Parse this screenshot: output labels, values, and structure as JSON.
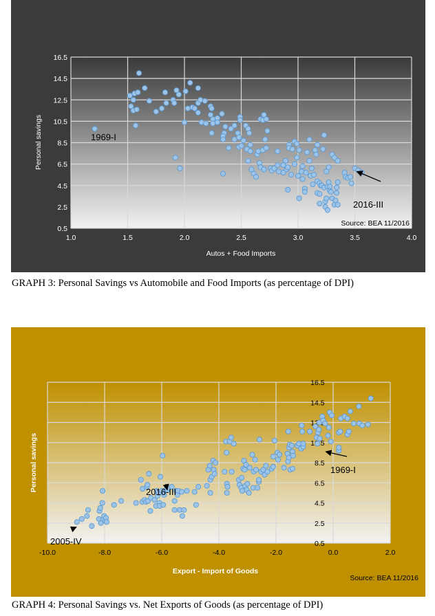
{
  "chart_data": [
    {
      "type": "scatter",
      "title": "",
      "xlabel": "Autos + Food Imports",
      "ylabel": "Personal savings",
      "xlim": [
        1.0,
        4.0
      ],
      "ylim": [
        0.5,
        16.5
      ],
      "xticks": [
        "1.0",
        "1.5",
        "2.0",
        "2.5",
        "3.0",
        "3.5",
        "4.0"
      ],
      "yticks": [
        "0.5",
        "2.5",
        "4.5",
        "6.5",
        "8.5",
        "10.5",
        "12.5",
        "14.5",
        "16.5"
      ],
      "grid": true,
      "source_note": "Source: BEA 11/2016",
      "colors": {
        "background": "#3b3b3b",
        "plot_top": "#3a3a3a",
        "plot_bottom": "#f2f2f2",
        "marker_fill": "#9dc3e6",
        "marker_stroke": "#5b9bd5",
        "text": "#ffffff"
      },
      "annotations": [
        {
          "text": "1969-I",
          "x": 1.21,
          "y": 9.8,
          "arrow": false
        },
        {
          "text": "2016-III",
          "x": 3.5,
          "y": 6.0,
          "arrow": true
        }
      ],
      "points": [
        [
          1.21,
          9.8
        ],
        [
          1.52,
          12.9
        ],
        [
          1.53,
          11.9
        ],
        [
          1.55,
          12.5
        ],
        [
          1.55,
          11.5
        ],
        [
          1.56,
          13.1
        ],
        [
          1.57,
          10.1
        ],
        [
          1.58,
          11.6
        ],
        [
          1.59,
          13.2
        ],
        [
          1.6,
          15.0
        ],
        [
          1.65,
          13.6
        ],
        [
          1.69,
          12.4
        ],
        [
          1.75,
          11.4
        ],
        [
          1.8,
          11.7
        ],
        [
          1.83,
          13.2
        ],
        [
          1.84,
          12.2
        ],
        [
          1.9,
          12.5
        ],
        [
          1.91,
          12.2
        ],
        [
          1.92,
          7.1
        ],
        [
          1.93,
          13.4
        ],
        [
          1.95,
          13.0
        ],
        [
          1.96,
          6.1
        ],
        [
          2.0,
          10.4
        ],
        [
          2.01,
          13.3
        ],
        [
          2.03,
          11.7
        ],
        [
          2.05,
          14.1
        ],
        [
          2.07,
          11.8
        ],
        [
          2.09,
          11.7
        ],
        [
          2.12,
          13.6
        ],
        [
          2.12,
          12.2
        ],
        [
          2.12,
          11.3
        ],
        [
          2.14,
          12.5
        ],
        [
          2.15,
          10.4
        ],
        [
          2.18,
          12.4
        ],
        [
          2.19,
          10.3
        ],
        [
          2.23,
          11.9
        ],
        [
          2.23,
          11.1
        ],
        [
          2.24,
          11.7
        ],
        [
          2.25,
          10.7
        ],
        [
          2.25,
          10.3
        ],
        [
          2.24,
          9.4
        ],
        [
          2.29,
          10.8
        ],
        [
          2.29,
          10.4
        ],
        [
          2.33,
          11.2
        ],
        [
          2.34,
          5.6
        ],
        [
          2.35,
          9.4
        ],
        [
          2.34,
          9.1
        ],
        [
          2.34,
          8.8
        ],
        [
          2.36,
          10.0
        ],
        [
          2.39,
          8.0
        ],
        [
          2.41,
          9.8
        ],
        [
          2.44,
          10.1
        ],
        [
          2.44,
          8.8
        ],
        [
          2.47,
          9.4
        ],
        [
          2.48,
          9.0
        ],
        [
          2.48,
          8.1
        ],
        [
          2.49,
          10.9
        ],
        [
          2.49,
          10.6
        ],
        [
          2.5,
          8.2
        ],
        [
          2.52,
          8.7
        ],
        [
          2.54,
          10.1
        ],
        [
          2.55,
          7.9
        ],
        [
          2.56,
          9.8
        ],
        [
          2.57,
          9.4
        ],
        [
          2.56,
          6.8
        ],
        [
          2.58,
          8.3
        ],
        [
          2.58,
          7.7
        ],
        [
          2.59,
          6.0
        ],
        [
          2.61,
          5.6
        ],
        [
          2.63,
          5.3
        ],
        [
          2.64,
          7.4
        ],
        [
          2.65,
          7.7
        ],
        [
          2.66,
          6.6
        ],
        [
          2.67,
          6.2
        ],
        [
          2.67,
          10.7
        ],
        [
          2.69,
          10.6
        ],
        [
          2.69,
          7.8
        ],
        [
          2.7,
          6.0
        ],
        [
          2.7,
          11.1
        ],
        [
          2.71,
          8.8
        ],
        [
          2.72,
          10.7
        ],
        [
          2.72,
          8.0
        ],
        [
          2.73,
          9.6
        ],
        [
          2.76,
          6.1
        ],
        [
          2.77,
          5.9
        ],
        [
          2.79,
          6.1
        ],
        [
          2.82,
          6.4
        ],
        [
          2.82,
          7.7
        ],
        [
          2.83,
          5.8
        ],
        [
          2.87,
          5.7
        ],
        [
          2.87,
          6.4
        ],
        [
          2.89,
          6.8
        ],
        [
          2.9,
          6.0
        ],
        [
          2.91,
          6.2
        ],
        [
          2.91,
          4.1
        ],
        [
          2.92,
          8.3
        ],
        [
          2.92,
          8.0
        ],
        [
          2.94,
          5.5
        ],
        [
          2.95,
          7.9
        ],
        [
          2.97,
          8.6
        ],
        [
          2.97,
          6.5
        ],
        [
          2.99,
          8.4
        ],
        [
          2.99,
          7.1
        ],
        [
          3.0,
          5.4
        ],
        [
          3.01,
          7.8
        ],
        [
          3.01,
          3.3
        ],
        [
          3.03,
          5.8
        ],
        [
          3.04,
          6.3
        ],
        [
          3.04,
          5.1
        ],
        [
          3.06,
          4.2
        ],
        [
          3.06,
          3.9
        ],
        [
          3.07,
          5.7
        ],
        [
          3.08,
          7.6
        ],
        [
          3.1,
          6.8
        ],
        [
          3.1,
          8.8
        ],
        [
          3.11,
          5.4
        ],
        [
          3.12,
          6.1
        ],
        [
          3.13,
          4.6
        ],
        [
          3.14,
          5.5
        ],
        [
          3.15,
          7.8
        ],
        [
          3.16,
          7.4
        ],
        [
          3.17,
          8.3
        ],
        [
          3.17,
          4.9
        ],
        [
          3.17,
          3.8
        ],
        [
          3.19,
          4.7
        ],
        [
          3.19,
          3.7
        ],
        [
          3.19,
          2.8
        ],
        [
          3.2,
          4.5
        ],
        [
          3.21,
          4.5
        ],
        [
          3.22,
          7.9
        ],
        [
          3.23,
          9.2
        ],
        [
          3.23,
          4.3
        ],
        [
          3.24,
          3.0
        ],
        [
          3.24,
          2.5
        ],
        [
          3.25,
          5.8
        ],
        [
          3.25,
          3.3
        ],
        [
          3.26,
          2.2
        ],
        [
          3.26,
          4.4
        ],
        [
          3.27,
          6.2
        ],
        [
          3.27,
          4.8
        ],
        [
          3.28,
          4.4
        ],
        [
          3.28,
          4.0
        ],
        [
          3.29,
          3.9
        ],
        [
          3.3,
          7.4
        ],
        [
          3.3,
          3.3
        ],
        [
          3.32,
          7.1
        ],
        [
          3.32,
          2.7
        ],
        [
          3.33,
          3.1
        ],
        [
          3.34,
          4.3
        ],
        [
          3.34,
          3.8
        ],
        [
          3.35,
          6.8
        ],
        [
          3.35,
          4.8
        ],
        [
          3.35,
          2.7
        ],
        [
          3.41,
          5.7
        ],
        [
          3.42,
          5.3
        ],
        [
          3.44,
          5.2
        ],
        [
          3.46,
          5.3
        ],
        [
          3.47,
          4.7
        ],
        [
          3.5,
          6.1
        ],
        [
          3.53,
          5.9
        ],
        [
          3.56,
          5.7
        ]
      ]
    },
    {
      "type": "scatter",
      "title": "",
      "xlabel": "Export - Import of Goods",
      "ylabel": "Personal savings",
      "xlim": [
        -10.0,
        2.0
      ],
      "ylim": [
        0.5,
        16.5
      ],
      "xticks": [
        "-10.0",
        "-8.0",
        "-6.0",
        "-4.0",
        "-2.0",
        "0.0",
        "2.0"
      ],
      "yticks": [
        "0.5",
        "2.5",
        "4.5",
        "6.5",
        "8.5",
        "10.5",
        "12.5",
        "14.5",
        "16.5"
      ],
      "grid": true,
      "source_note": "Source: BEA 11/2016",
      "colors": {
        "background": "#bf9000",
        "plot_top": "#bf9000",
        "plot_bottom": "#f2f2f2",
        "marker_fill": "#9dc3e6",
        "marker_stroke": "#5b9bd5",
        "text": "#ffffff"
      },
      "annotations": [
        {
          "text": "2005-IV",
          "x": -9.06,
          "y": 2.3,
          "arrow": true
        },
        {
          "text": "2016-III",
          "x": -5.88,
          "y": 6.0,
          "arrow": true
        },
        {
          "text": "1969-I",
          "x": -0.33,
          "y": 9.8,
          "arrow": true
        }
      ],
      "points": [
        [
          -8.97,
          2.6
        ],
        [
          -8.8,
          2.9
        ],
        [
          -8.62,
          3.2
        ],
        [
          -8.58,
          3.8
        ],
        [
          -8.45,
          2.2
        ],
        [
          -8.2,
          2.9
        ],
        [
          -8.18,
          3.7
        ],
        [
          -8.15,
          4.0
        ],
        [
          -8.13,
          2.5
        ],
        [
          -8.08,
          4.5
        ],
        [
          -8.07,
          5.7
        ],
        [
          -8.05,
          2.9
        ],
        [
          -8.02,
          3.2
        ],
        [
          -7.98,
          2.7
        ],
        [
          -7.95,
          3.0
        ],
        [
          -7.93,
          2.6
        ],
        [
          -7.67,
          4.3
        ],
        [
          -7.42,
          4.7
        ],
        [
          -6.9,
          4.5
        ],
        [
          -6.73,
          6.8
        ],
        [
          -6.68,
          4.6
        ],
        [
          -6.67,
          5.9
        ],
        [
          -6.6,
          4.8
        ],
        [
          -6.55,
          4.6
        ],
        [
          -6.52,
          6.1
        ],
        [
          -6.5,
          6.3
        ],
        [
          -6.48,
          4.7
        ],
        [
          -6.45,
          7.4
        ],
        [
          -6.4,
          3.7
        ],
        [
          -6.38,
          5.0
        ],
        [
          -6.25,
          4.8
        ],
        [
          -6.2,
          4.2
        ],
        [
          -6.18,
          5.7
        ],
        [
          -6.15,
          5.2
        ],
        [
          -6.1,
          5.5
        ],
        [
          -6.08,
          4.5
        ],
        [
          -6.07,
          4.2
        ],
        [
          -6.05,
          7.1
        ],
        [
          -6.0,
          5.7
        ],
        [
          -5.97,
          9.2
        ],
        [
          -5.95,
          4.3
        ],
        [
          -5.92,
          5.3
        ],
        [
          -5.85,
          5.8
        ],
        [
          -5.8,
          5.8
        ],
        [
          -5.75,
          6.0
        ],
        [
          -5.65,
          6.1
        ],
        [
          -5.55,
          4.7
        ],
        [
          -5.55,
          3.8
        ],
        [
          -5.5,
          5.7
        ],
        [
          -5.45,
          5.3
        ],
        [
          -5.42,
          5.7
        ],
        [
          -5.37,
          3.8
        ],
        [
          -5.3,
          5.6
        ],
        [
          -5.28,
          3.2
        ],
        [
          -5.22,
          3.8
        ],
        [
          -5.12,
          5.7
        ],
        [
          -4.85,
          5.6
        ],
        [
          -4.8,
          4.3
        ],
        [
          -4.72,
          6.1
        ],
        [
          -4.42,
          6.2
        ],
        [
          -4.37,
          7.8
        ],
        [
          -4.32,
          8.2
        ],
        [
          -4.3,
          6.8
        ],
        [
          -4.3,
          5.5
        ],
        [
          -4.25,
          7.1
        ],
        [
          -4.2,
          8.7
        ],
        [
          -4.18,
          7.8
        ],
        [
          -4.15,
          7.4
        ],
        [
          -4.12,
          8.5
        ],
        [
          -3.8,
          7.6
        ],
        [
          -3.75,
          10.6
        ],
        [
          -3.73,
          9.5
        ],
        [
          -3.72,
          6.4
        ],
        [
          -3.72,
          5.5
        ],
        [
          -3.7,
          6.1
        ],
        [
          -3.62,
          10.6
        ],
        [
          -3.57,
          11.0
        ],
        [
          -3.55,
          7.6
        ],
        [
          -3.48,
          10.4
        ],
        [
          -3.3,
          6.8
        ],
        [
          -3.28,
          6.3
        ],
        [
          -3.22,
          6.0
        ],
        [
          -3.2,
          7.0
        ],
        [
          -3.18,
          5.7
        ],
        [
          -3.15,
          7.9
        ],
        [
          -3.12,
          8.7
        ],
        [
          -3.1,
          7.8
        ],
        [
          -3.08,
          6.2
        ],
        [
          -3.05,
          8.3
        ],
        [
          -3.02,
          5.8
        ],
        [
          -3.0,
          6.4
        ],
        [
          -2.95,
          5.5
        ],
        [
          -2.92,
          8.0
        ],
        [
          -2.83,
          9.3
        ],
        [
          -2.8,
          6.0
        ],
        [
          -2.78,
          7.6
        ],
        [
          -2.73,
          8.8
        ],
        [
          -2.7,
          7.8
        ],
        [
          -2.65,
          6.0
        ],
        [
          -2.6,
          6.6
        ],
        [
          -2.6,
          6.8
        ],
        [
          -2.58,
          10.8
        ],
        [
          -2.52,
          7.6
        ],
        [
          -2.45,
          7.8
        ],
        [
          -2.4,
          7.3
        ],
        [
          -2.35,
          8.2
        ],
        [
          -2.3,
          7.6
        ],
        [
          -2.15,
          7.9
        ],
        [
          -2.1,
          8.1
        ],
        [
          -2.1,
          9.1
        ],
        [
          -2.05,
          10.7
        ],
        [
          -1.95,
          9.5
        ],
        [
          -1.93,
          8.8
        ],
        [
          -1.88,
          9.3
        ],
        [
          -1.72,
          8.0
        ],
        [
          -1.6,
          9.4
        ],
        [
          -1.58,
          8.6
        ],
        [
          -1.57,
          11.6
        ],
        [
          -1.55,
          10.0
        ],
        [
          -1.55,
          9.0
        ],
        [
          -1.52,
          10.3
        ],
        [
          -1.5,
          7.8
        ],
        [
          -1.45,
          10.2
        ],
        [
          -1.42,
          9.6
        ],
        [
          -1.42,
          7.9
        ],
        [
          -1.4,
          9.2
        ],
        [
          -1.25,
          10.2
        ],
        [
          -1.2,
          10.4
        ],
        [
          -1.12,
          9.9
        ],
        [
          -1.1,
          12.2
        ],
        [
          -1.08,
          11.6
        ],
        [
          -1.05,
          10.1
        ],
        [
          -1.05,
          10.4
        ],
        [
          -0.82,
          11.6
        ],
        [
          -0.62,
          12.1
        ],
        [
          -0.58,
          11.0
        ],
        [
          -0.55,
          10.4
        ],
        [
          -0.53,
          11.5
        ],
        [
          -0.5,
          11.8
        ],
        [
          -0.48,
          12.5
        ],
        [
          -0.47,
          10.9
        ],
        [
          -0.38,
          13.1
        ],
        [
          -0.35,
          12.7
        ],
        [
          -0.28,
          12.4
        ],
        [
          -0.18,
          11.2
        ],
        [
          -0.15,
          12.0
        ],
        [
          -0.12,
          13.5
        ],
        [
          -0.08,
          10.6
        ],
        [
          -0.05,
          13.2
        ],
        [
          0.2,
          9.7
        ],
        [
          0.2,
          10.0
        ],
        [
          0.2,
          11.5
        ],
        [
          0.25,
          11.6
        ],
        [
          0.27,
          12.9
        ],
        [
          0.4,
          13.1
        ],
        [
          0.5,
          11.3
        ],
        [
          0.5,
          12.9
        ],
        [
          0.55,
          11.6
        ],
        [
          0.6,
          13.6
        ],
        [
          0.72,
          12.4
        ],
        [
          0.9,
          14.1
        ],
        [
          0.92,
          12.4
        ],
        [
          1.02,
          12.2
        ],
        [
          1.22,
          12.3
        ],
        [
          1.32,
          14.9
        ]
      ]
    }
  ],
  "captions": {
    "graph3": "GRAPH 3: Personal Savings vs Automobile and Food Imports (as percentage of DPI)",
    "graph4": "GRAPH 4: Personal Savings vs. Net Exports of Goods (as percentage of DPI)"
  }
}
